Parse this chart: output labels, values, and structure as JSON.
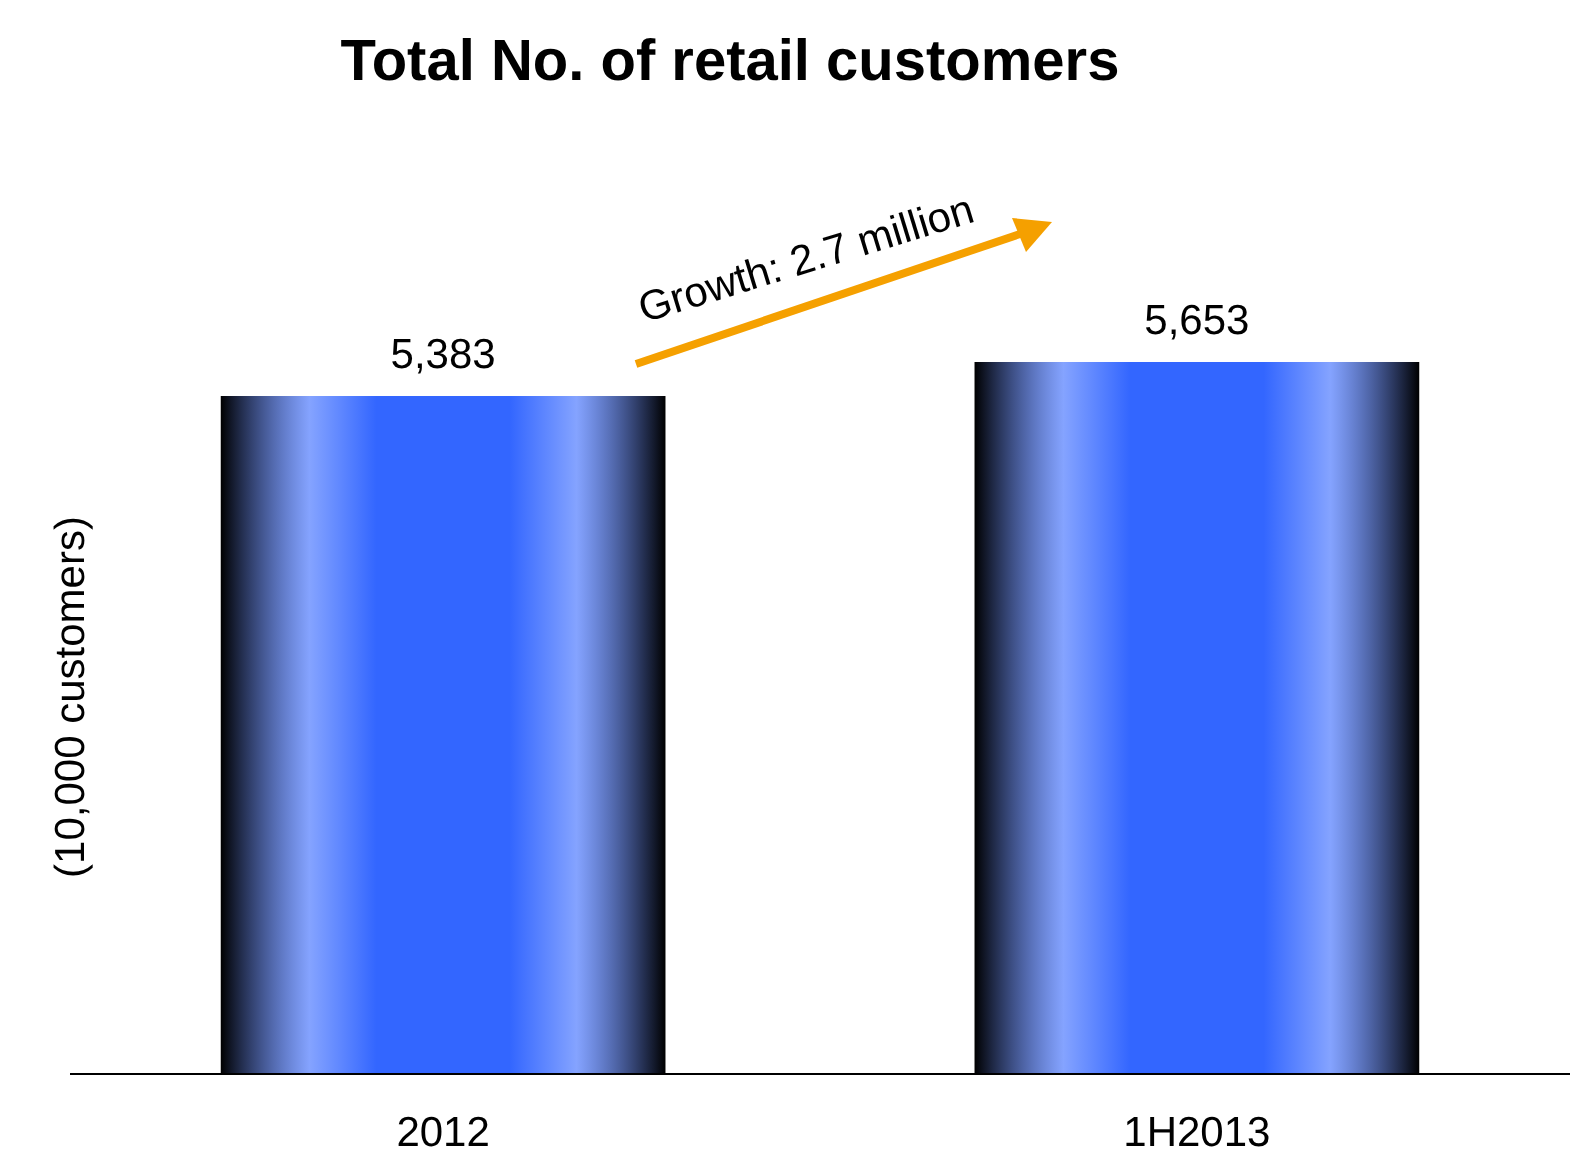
{
  "chart_data": {
    "type": "bar",
    "title": "Total No. of retail customers",
    "ylabel": "(10,000 customers)",
    "categories": [
      "2012",
      "1H2013"
    ],
    "values": [
      5383,
      5653
    ],
    "color": "#3366ff",
    "value_labels": [
      "5,383",
      "5,653"
    ],
    "annotations": [
      "Growth: 2.7 million"
    ]
  }
}
